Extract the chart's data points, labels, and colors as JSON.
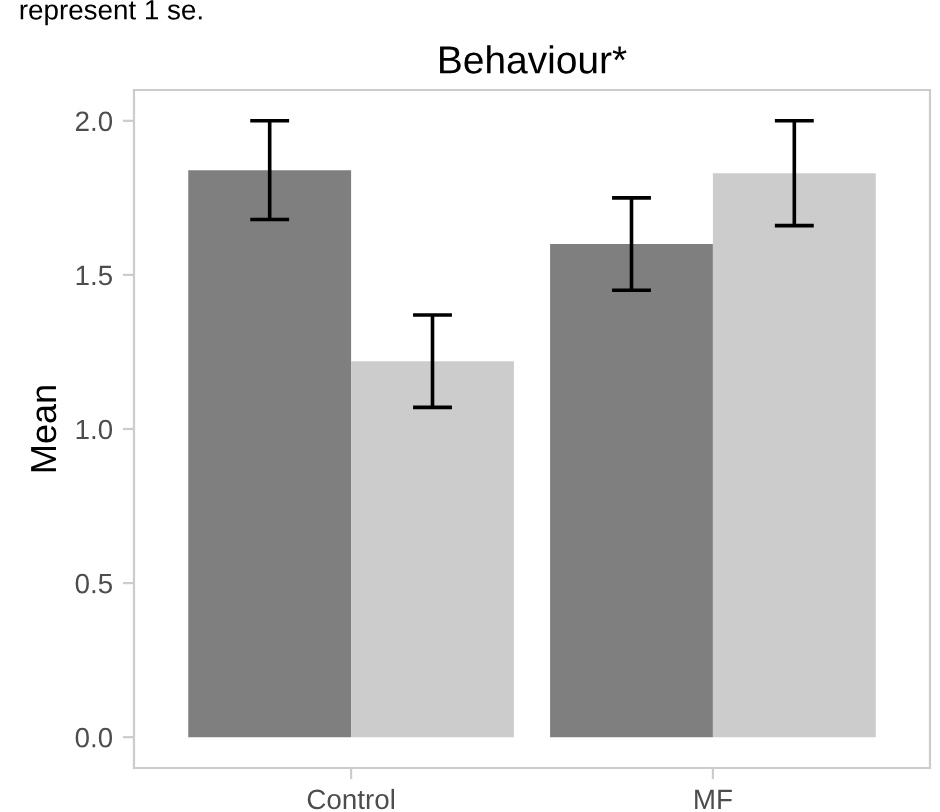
{
  "chart_data": {
    "type": "bar",
    "title": "Behaviour*",
    "ylabel": "Mean",
    "annotations": [
      "represent 1 se."
    ],
    "categories": [
      "Control",
      "MF"
    ],
    "series": [
      {
        "color": "#7f7f7f",
        "values": [
          1.84,
          1.6
        ],
        "errors": [
          0.16,
          0.15
        ]
      },
      {
        "color": "#cccccc",
        "values": [
          1.22,
          1.83
        ],
        "errors": [
          0.15,
          0.17
        ]
      }
    ],
    "ylim": [
      -0.1,
      2.1
    ],
    "yticks": [
      {
        "value": 0,
        "label": "0.0"
      },
      0.5,
      {
        "value": 1,
        "label": "1.0"
      },
      1.5,
      {
        "value": 2,
        "label": "2.0"
      }
    ],
    "grid": false
  }
}
